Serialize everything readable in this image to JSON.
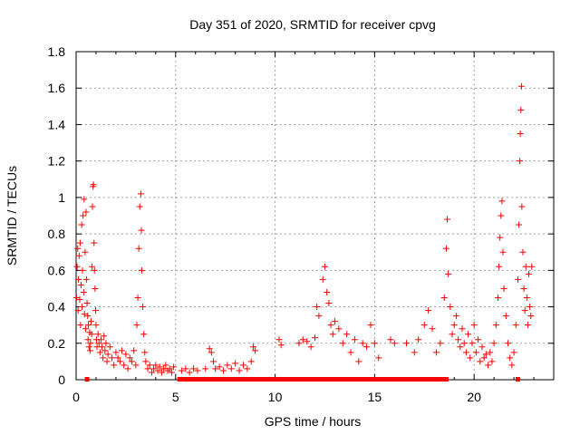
{
  "chart_data": {
    "type": "scatter",
    "title": "Day 351 of 2020, SRMTID for receiver cpvg",
    "xlabel": "GPS time / hours",
    "ylabel": "SRMTID / TECUs",
    "xlim": [
      0,
      24
    ],
    "ylim": [
      0,
      1.8
    ],
    "x_ticks": [
      0,
      5,
      10,
      15,
      20
    ],
    "x_tick_labels": [
      "0",
      "5",
      "10",
      "15",
      "20"
    ],
    "y_ticks": [
      0,
      0.2,
      0.4,
      0.6,
      0.8,
      1.0,
      1.2,
      1.4,
      1.6,
      1.8
    ],
    "y_tick_labels": [
      "0",
      "0.2",
      "0.4",
      "0.6",
      "0.8",
      "1",
      "1.2",
      "1.4",
      "1.6",
      "1.8"
    ],
    "grid": true,
    "marker": "plus",
    "color": "#ff0000",
    "series": [
      {
        "name": "SRMTID",
        "points": [
          [
            0.02,
            0.45
          ],
          [
            0.05,
            0.62
          ],
          [
            0.08,
            0.72
          ],
          [
            0.1,
            0.38
          ],
          [
            0.12,
            0.55
          ],
          [
            0.15,
            0.68
          ],
          [
            0.18,
            0.44
          ],
          [
            0.2,
            0.75
          ],
          [
            0.22,
            0.3
          ],
          [
            0.25,
            0.52
          ],
          [
            0.28,
            0.85
          ],
          [
            0.3,
            0.4
          ],
          [
            0.32,
            0.6
          ],
          [
            0.35,
            0.9
          ],
          [
            0.38,
            0.48
          ],
          [
            0.4,
            0.99
          ],
          [
            0.42,
            0.36
          ],
          [
            0.45,
            0.7
          ],
          [
            0.48,
            0.28
          ],
          [
            0.5,
            0.92
          ],
          [
            0.52,
            0.55
          ],
          [
            0.55,
            0.42
          ],
          [
            0.58,
            0.35
          ],
          [
            0.6,
            0.22
          ],
          [
            0.62,
            0.3
          ],
          [
            0.65,
            0.18
          ],
          [
            0.68,
            0.26
          ],
          [
            0.7,
            0.16
          ],
          [
            0.72,
            0.2
          ],
          [
            0.75,
            0.32
          ],
          [
            0.78,
            0.25
          ],
          [
            0.8,
            0.62
          ],
          [
            0.82,
            0.95
          ],
          [
            0.85,
            1.06
          ],
          [
            0.87,
            1.07
          ],
          [
            0.9,
            0.75
          ],
          [
            0.92,
            0.6
          ],
          [
            0.95,
            0.5
          ],
          [
            0.98,
            0.38
          ],
          [
            1.0,
            0.3
          ],
          [
            1.02,
            0.22
          ],
          [
            1.05,
            0.18
          ],
          [
            1.1,
            0.25
          ],
          [
            1.15,
            0.2
          ],
          [
            1.2,
            0.15
          ],
          [
            1.25,
            0.22
          ],
          [
            1.3,
            0.18
          ],
          [
            1.35,
            0.12
          ],
          [
            1.4,
            0.24
          ],
          [
            1.45,
            0.16
          ],
          [
            1.5,
            0.2
          ],
          [
            1.55,
            0.1
          ],
          [
            1.6,
            0.14
          ],
          [
            1.7,
            0.18
          ],
          [
            1.8,
            0.12
          ],
          [
            1.9,
            0.08
          ],
          [
            2.0,
            0.15
          ],
          [
            2.1,
            0.12
          ],
          [
            2.2,
            0.1
          ],
          [
            2.3,
            0.16
          ],
          [
            2.4,
            0.08
          ],
          [
            2.5,
            0.14
          ],
          [
            2.6,
            0.06
          ],
          [
            2.7,
            0.12
          ],
          [
            2.8,
            0.1
          ],
          [
            2.9,
            0.16
          ],
          [
            3.0,
            0.08
          ],
          [
            3.05,
            0.3
          ],
          [
            3.1,
            0.45
          ],
          [
            3.15,
            0.72
          ],
          [
            3.2,
            0.95
          ],
          [
            3.25,
            1.02
          ],
          [
            3.28,
            0.82
          ],
          [
            3.3,
            0.6
          ],
          [
            3.35,
            0.4
          ],
          [
            3.4,
            0.25
          ],
          [
            3.45,
            0.15
          ],
          [
            3.5,
            0.1
          ],
          [
            3.6,
            0.06
          ],
          [
            3.7,
            0.08
          ],
          [
            3.8,
            0.04
          ],
          [
            3.9,
            0.06
          ],
          [
            4.0,
            0.08
          ],
          [
            4.1,
            0.05
          ],
          [
            4.2,
            0.07
          ],
          [
            4.3,
            0.04
          ],
          [
            4.4,
            0.06
          ],
          [
            4.5,
            0.08
          ],
          [
            4.6,
            0.05
          ],
          [
            4.7,
            0.06
          ],
          [
            4.8,
            0.04
          ],
          [
            4.9,
            0.07
          ],
          [
            5.3,
            0.05
          ],
          [
            5.5,
            0.06
          ],
          [
            5.7,
            0.04
          ],
          [
            5.9,
            0.06
          ],
          [
            6.1,
            0.05
          ],
          [
            6.5,
            0.06
          ],
          [
            6.7,
            0.17
          ],
          [
            6.8,
            0.15
          ],
          [
            6.9,
            0.1
          ],
          [
            7.0,
            0.06
          ],
          [
            7.2,
            0.07
          ],
          [
            7.4,
            0.05
          ],
          [
            7.6,
            0.08
          ],
          [
            7.8,
            0.06
          ],
          [
            8.0,
            0.09
          ],
          [
            8.2,
            0.05
          ],
          [
            8.4,
            0.08
          ],
          [
            8.6,
            0.06
          ],
          [
            8.8,
            0.1
          ],
          [
            8.9,
            0.18
          ],
          [
            9.0,
            0.16
          ],
          [
            10.2,
            0.22
          ],
          [
            10.3,
            0.19
          ],
          [
            11.2,
            0.2
          ],
          [
            11.4,
            0.22
          ],
          [
            11.6,
            0.21
          ],
          [
            11.8,
            0.18
          ],
          [
            12.0,
            0.23
          ],
          [
            12.1,
            0.4
          ],
          [
            12.2,
            0.35
          ],
          [
            12.4,
            0.55
          ],
          [
            12.5,
            0.62
          ],
          [
            12.6,
            0.48
          ],
          [
            12.7,
            0.42
          ],
          [
            12.8,
            0.3
          ],
          [
            12.9,
            0.25
          ],
          [
            13.0,
            0.32
          ],
          [
            13.2,
            0.28
          ],
          [
            13.4,
            0.2
          ],
          [
            13.6,
            0.25
          ],
          [
            13.8,
            0.15
          ],
          [
            14.0,
            0.22
          ],
          [
            14.2,
            0.1
          ],
          [
            14.4,
            0.2
          ],
          [
            14.6,
            0.18
          ],
          [
            14.8,
            0.3
          ],
          [
            15.0,
            0.2
          ],
          [
            15.2,
            0.12
          ],
          [
            15.8,
            0.22
          ],
          [
            16.0,
            0.2
          ],
          [
            16.6,
            0.2
          ],
          [
            17.0,
            0.15
          ],
          [
            17.2,
            0.22
          ],
          [
            17.5,
            0.3
          ],
          [
            17.7,
            0.38
          ],
          [
            17.9,
            0.28
          ],
          [
            18.1,
            0.15
          ],
          [
            18.3,
            0.2
          ],
          [
            18.5,
            0.45
          ],
          [
            18.6,
            0.72
          ],
          [
            18.65,
            0.88
          ],
          [
            18.7,
            0.58
          ],
          [
            18.8,
            0.4
          ],
          [
            18.9,
            0.25
          ],
          [
            19.0,
            0.3
          ],
          [
            19.1,
            0.35
          ],
          [
            19.2,
            0.22
          ],
          [
            19.3,
            0.18
          ],
          [
            19.4,
            0.28
          ],
          [
            19.5,
            0.2
          ],
          [
            19.6,
            0.15
          ],
          [
            19.7,
            0.25
          ],
          [
            19.8,
            0.12
          ],
          [
            19.9,
            0.2
          ],
          [
            20.0,
            0.3
          ],
          [
            20.1,
            0.15
          ],
          [
            20.2,
            0.22
          ],
          [
            20.3,
            0.1
          ],
          [
            20.4,
            0.18
          ],
          [
            20.5,
            0.12
          ],
          [
            20.6,
            0.14
          ],
          [
            20.7,
            0.08
          ],
          [
            20.8,
            0.15
          ],
          [
            20.9,
            0.1
          ],
          [
            21.0,
            0.2
          ],
          [
            21.1,
            0.3
          ],
          [
            21.2,
            0.45
          ],
          [
            21.25,
            0.62
          ],
          [
            21.3,
            0.78
          ],
          [
            21.35,
            0.9
          ],
          [
            21.4,
            0.98
          ],
          [
            21.45,
            0.7
          ],
          [
            21.5,
            0.5
          ],
          [
            21.6,
            0.35
          ],
          [
            21.7,
            0.2
          ],
          [
            21.8,
            0.12
          ],
          [
            21.9,
            0.08
          ],
          [
            22.0,
            0.15
          ],
          [
            22.1,
            0.3
          ],
          [
            22.2,
            0.55
          ],
          [
            22.25,
            0.85
          ],
          [
            22.3,
            1.2
          ],
          [
            22.32,
            1.35
          ],
          [
            22.35,
            1.48
          ],
          [
            22.38,
            1.61
          ],
          [
            22.4,
            0.95
          ],
          [
            22.45,
            0.7
          ],
          [
            22.5,
            0.5
          ],
          [
            22.55,
            0.38
          ],
          [
            22.6,
            0.62
          ],
          [
            22.65,
            0.45
          ],
          [
            22.7,
            0.3
          ],
          [
            22.75,
            0.58
          ],
          [
            22.8,
            0.4
          ],
          [
            22.85,
            0.35
          ],
          [
            22.9,
            0.62
          ]
        ]
      }
    ],
    "zero_points_x": [
      0.55,
      5.2,
      5.4,
      5.6,
      5.8,
      6.0,
      6.2,
      6.4,
      6.6,
      6.8,
      7.0,
      7.2,
      7.4,
      7.6,
      7.8,
      8.0,
      8.2,
      8.4,
      8.6,
      8.8,
      9.0,
      9.2,
      9.4,
      9.6,
      9.8,
      10.0,
      10.2,
      10.4,
      10.6,
      10.8,
      11.0,
      11.2,
      11.4,
      11.6,
      11.8,
      12.0,
      12.2,
      12.4,
      12.6,
      12.8,
      13.0,
      13.2,
      13.4,
      13.6,
      13.8,
      14.0,
      14.2,
      14.4,
      14.6,
      14.8,
      15.0,
      15.2,
      15.4,
      15.6,
      15.8,
      16.0,
      16.2,
      16.4,
      16.6,
      16.8,
      17.0,
      17.2,
      17.4,
      17.6,
      17.8,
      18.0,
      18.2,
      18.4,
      18.6,
      22.2
    ]
  }
}
